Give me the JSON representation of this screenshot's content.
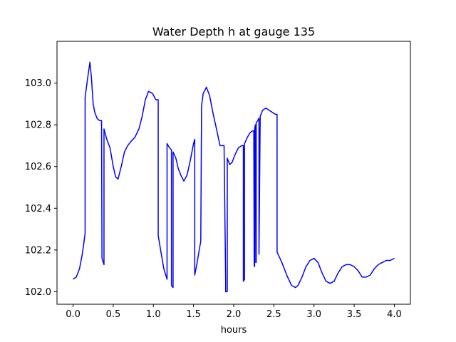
{
  "chart_data": {
    "type": "line",
    "title": "Water Depth h at gauge 135",
    "xlabel": "hours",
    "ylabel": "",
    "xlim": [
      -0.2,
      4.2
    ],
    "ylim": [
      101.94,
      103.2
    ],
    "x_ticks": [
      0.0,
      0.5,
      1.0,
      1.5,
      2.0,
      2.5,
      3.0,
      3.5,
      4.0
    ],
    "x_tick_labels": [
      "0.0",
      "0.5",
      "1.0",
      "1.5",
      "2.0",
      "2.5",
      "3.0",
      "3.5",
      "4.0"
    ],
    "y_ticks": [
      102.0,
      102.2,
      102.4,
      102.6,
      102.8,
      103.0
    ],
    "y_tick_labels": [
      "102.0",
      "102.2",
      "102.4",
      "102.6",
      "102.8",
      "103.0"
    ],
    "grid": false,
    "series": [
      {
        "color": "#0000ff",
        "x": [
          0.0,
          0.04,
          0.08,
          0.11,
          0.13,
          0.15,
          0.15,
          0.18,
          0.21,
          0.23,
          0.25,
          0.27,
          0.3,
          0.33,
          0.355,
          0.36,
          0.385,
          0.385,
          0.42,
          0.46,
          0.5,
          0.53,
          0.56,
          0.6,
          0.64,
          0.68,
          0.72,
          0.77,
          0.82,
          0.86,
          0.9,
          0.94,
          0.99,
          1.03,
          1.06,
          1.06,
          1.09,
          1.13,
          1.17,
          1.17,
          1.2,
          1.225,
          1.225,
          1.245,
          1.245,
          1.28,
          1.31,
          1.34,
          1.38,
          1.42,
          1.46,
          1.5,
          1.515,
          1.515,
          1.54,
          1.58,
          1.59,
          1.6,
          1.62,
          1.66,
          1.7,
          1.74,
          1.78,
          1.83,
          1.88,
          1.9,
          1.9,
          1.92,
          1.92,
          1.95,
          1.98,
          2.02,
          2.06,
          2.1,
          2.12,
          2.12,
          2.135,
          2.135,
          2.17,
          2.2,
          2.23,
          2.25,
          2.255,
          2.26,
          2.26,
          2.27,
          2.275,
          2.28,
          2.28,
          2.3,
          2.31,
          2.315,
          2.315,
          2.33,
          2.36,
          2.4,
          2.44,
          2.48,
          2.52,
          2.54,
          2.54,
          2.6,
          2.66,
          2.72,
          2.77,
          2.8,
          2.85,
          2.9,
          2.95,
          3.0,
          3.05,
          3.1,
          3.15,
          3.2,
          3.25,
          3.3,
          3.35,
          3.4,
          3.45,
          3.5,
          3.55,
          3.6,
          3.65,
          3.7,
          3.75,
          3.8,
          3.85,
          3.9,
          3.95,
          4.0
        ],
        "y": [
          102.06,
          102.07,
          102.11,
          102.17,
          102.22,
          102.28,
          102.93,
          103.02,
          103.1,
          103.02,
          102.9,
          102.86,
          102.83,
          102.82,
          102.82,
          102.16,
          102.13,
          102.78,
          102.73,
          102.69,
          102.6,
          102.55,
          102.54,
          102.6,
          102.67,
          102.7,
          102.72,
          102.74,
          102.78,
          102.84,
          102.92,
          102.96,
          102.95,
          102.92,
          102.92,
          102.27,
          102.2,
          102.11,
          102.06,
          102.71,
          102.69,
          102.68,
          102.03,
          102.02,
          102.67,
          102.64,
          102.59,
          102.56,
          102.53,
          102.56,
          102.63,
          102.71,
          102.73,
          102.08,
          102.13,
          102.22,
          102.24,
          102.89,
          102.95,
          102.98,
          102.94,
          102.86,
          102.79,
          102.7,
          102.7,
          102.05,
          102.0,
          102.0,
          102.64,
          102.61,
          102.62,
          102.66,
          102.69,
          102.7,
          102.7,
          102.05,
          102.06,
          102.71,
          102.74,
          102.76,
          102.77,
          102.77,
          102.13,
          102.12,
          102.78,
          102.8,
          102.14,
          102.14,
          102.81,
          102.82,
          102.83,
          102.83,
          102.18,
          102.84,
          102.87,
          102.88,
          102.87,
          102.86,
          102.85,
          102.85,
          102.19,
          102.14,
          102.08,
          102.03,
          102.02,
          102.03,
          102.07,
          102.12,
          102.15,
          102.16,
          102.14,
          102.09,
          102.05,
          102.04,
          102.05,
          102.09,
          102.12,
          102.13,
          102.13,
          102.12,
          102.1,
          102.07,
          102.07,
          102.08,
          102.11,
          102.13,
          102.14,
          102.15,
          102.15,
          102.16
        ]
      }
    ]
  }
}
